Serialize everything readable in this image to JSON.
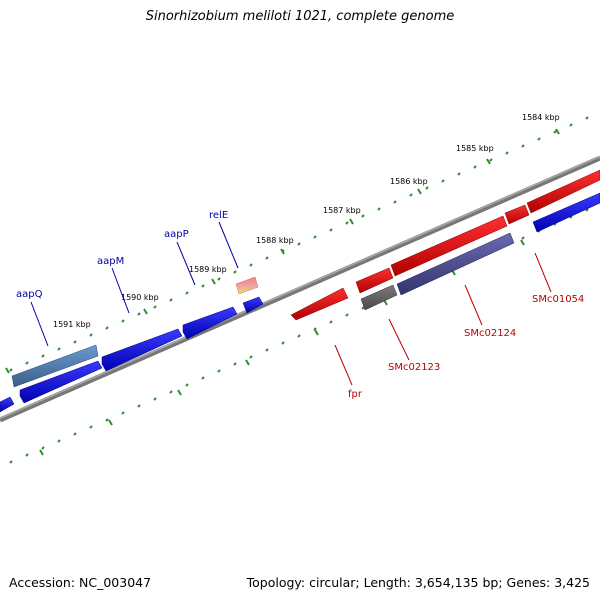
{
  "title": "Sinorhizobium meliloti 1021, complete genome",
  "accession": "Accession: NC_003047",
  "summary": "Topology: circular; Length: 3,654,135 bp; Genes: 3,425",
  "colors": {
    "backbone": "#808080",
    "ticks": "#2e8b2e",
    "forward_gene": "#0000ee",
    "reverse_gene": "#ee0000",
    "forward_label": "#0000aa",
    "reverse_label": "#bb0000"
  },
  "ticks": [
    {
      "label": "1584 kbp"
    },
    {
      "label": "1585 kbp"
    },
    {
      "label": "1586 kbp"
    },
    {
      "label": "1587 kbp"
    },
    {
      "label": "1588 kbp"
    },
    {
      "label": "1589 kbp"
    },
    {
      "label": "1590 kbp"
    },
    {
      "label": "1591 kbp"
    }
  ],
  "gene_labels": [
    {
      "name": "aapQ",
      "strand": "forward"
    },
    {
      "name": "aapM",
      "strand": "forward"
    },
    {
      "name": "aapP",
      "strand": "forward"
    },
    {
      "name": "relE",
      "strand": "forward"
    },
    {
      "name": "fpr",
      "strand": "reverse"
    },
    {
      "name": "SMc02123",
      "strand": "reverse"
    },
    {
      "name": "SMc02124",
      "strand": "reverse"
    },
    {
      "name": "SMc01054",
      "strand": "reverse"
    }
  ]
}
